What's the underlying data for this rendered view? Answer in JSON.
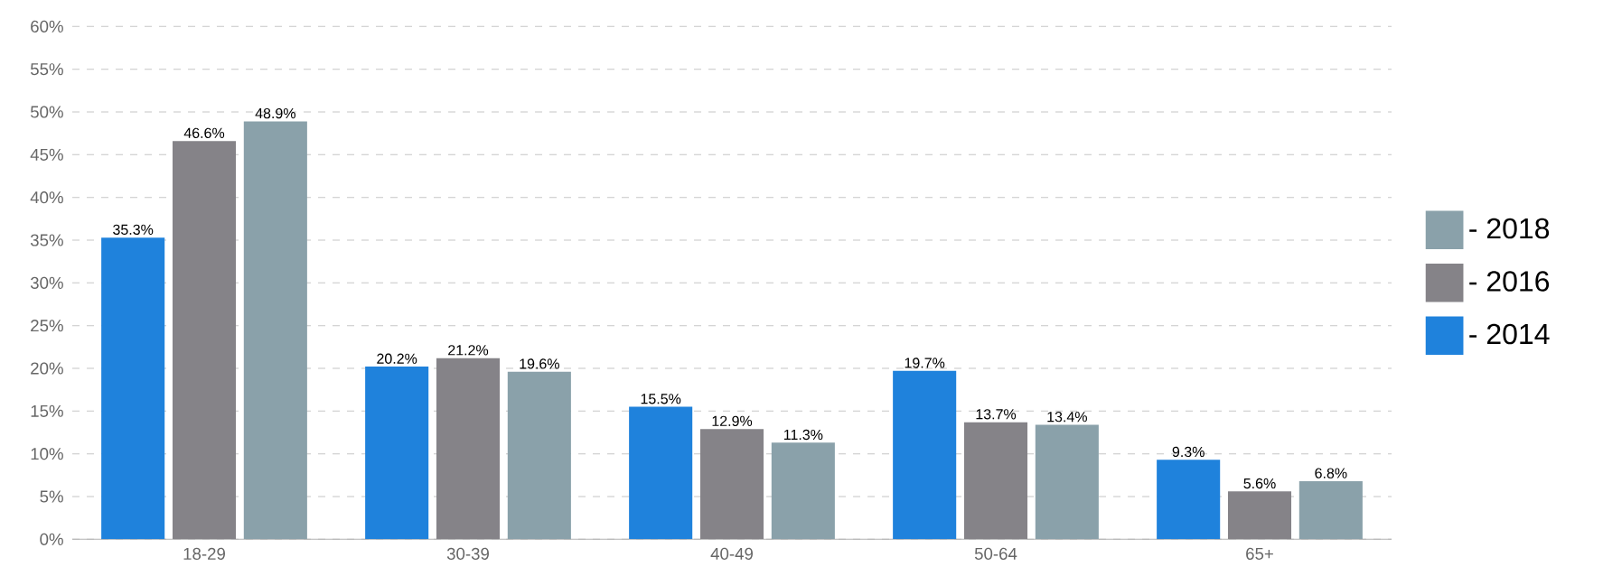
{
  "chart_data": {
    "type": "bar",
    "categories": [
      "18-29",
      "30-39",
      "40-49",
      "50-64",
      "65+"
    ],
    "series": [
      {
        "name": "- 2014",
        "color": "#1f82dc",
        "values": [
          35.3,
          20.2,
          15.5,
          19.7,
          9.3
        ],
        "value_labels": [
          "35.3%",
          "20.2%",
          "15.5%",
          "19.7%",
          "9.3%"
        ]
      },
      {
        "name": "- 2016",
        "color": "#858388",
        "values": [
          46.6,
          21.2,
          12.9,
          13.7,
          5.6
        ],
        "value_labels": [
          "46.6%",
          "21.2%",
          "12.9%",
          "13.7%",
          "5.6%"
        ]
      },
      {
        "name": "- 2018",
        "color": "#8aa1aa",
        "values": [
          48.9,
          19.6,
          11.3,
          13.4,
          6.8
        ],
        "value_labels": [
          "48.9%",
          "19.6%",
          "11.3%",
          "13.4%",
          "6.8%"
        ]
      }
    ],
    "ylim": [
      0,
      60
    ],
    "yticks": [
      {
        "value": 0,
        "label": "0%"
      },
      {
        "value": 5,
        "label": "5%"
      },
      {
        "value": 10,
        "label": "10%"
      },
      {
        "value": 15,
        "label": "15%"
      },
      {
        "value": 20,
        "label": "20%"
      },
      {
        "value": 25,
        "label": "25%"
      },
      {
        "value": 30,
        "label": "30%"
      },
      {
        "value": 35,
        "label": "35%"
      },
      {
        "value": 40,
        "label": "40%"
      },
      {
        "value": 45,
        "label": "45%"
      },
      {
        "value": 50,
        "label": "50%"
      },
      {
        "value": 55,
        "label": "55%"
      },
      {
        "value": 60,
        "label": "60%"
      }
    ],
    "grid": "y",
    "legend": "right"
  }
}
